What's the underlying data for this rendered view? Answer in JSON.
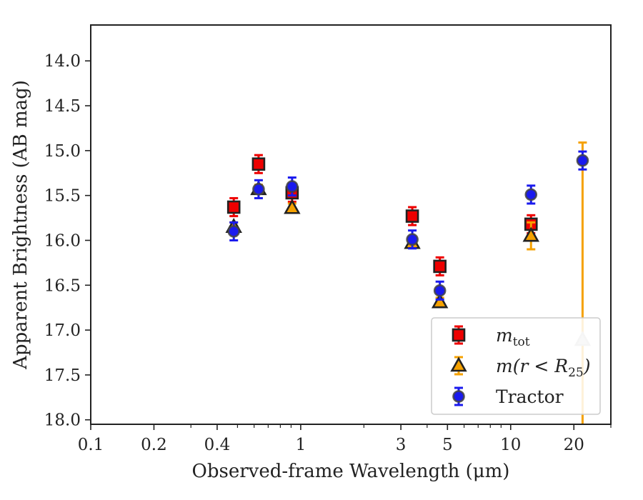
{
  "chart_data": {
    "type": "scatter",
    "xscale": "log",
    "yaxis_inverted": true,
    "xlim": [
      0.1,
      30
    ],
    "ylim": [
      18.05,
      13.6
    ],
    "xlabel": "Observed-frame Wavelength (μm)",
    "ylabel": "Apparent Brightness (AB mag)",
    "xticks": [
      {
        "value": 0.1,
        "label": "0.1"
      },
      {
        "value": 0.2,
        "label": "0.2"
      },
      {
        "value": 0.4,
        "label": "0.4"
      },
      {
        "value": 1,
        "label": "1"
      },
      {
        "value": 3,
        "label": "3"
      },
      {
        "value": 5,
        "label": "5"
      },
      {
        "value": 10,
        "label": "10"
      },
      {
        "value": 20,
        "label": "20"
      }
    ],
    "xminor": [
      0.3,
      0.5,
      0.6,
      0.7,
      0.8,
      0.9,
      2,
      4,
      6,
      7,
      8,
      9,
      30
    ],
    "yticks": [
      {
        "value": 14.0,
        "label": "14.0"
      },
      {
        "value": 14.5,
        "label": "14.5"
      },
      {
        "value": 15.0,
        "label": "15.0"
      },
      {
        "value": 15.5,
        "label": "15.5"
      },
      {
        "value": 16.0,
        "label": "16.0"
      },
      {
        "value": 16.5,
        "label": "16.5"
      },
      {
        "value": 17.0,
        "label": "17.0"
      },
      {
        "value": 17.5,
        "label": "17.5"
      },
      {
        "value": 18.0,
        "label": "18.0"
      }
    ],
    "legend_position": "lower-right",
    "series": [
      {
        "name": "m_tot",
        "legend_label": {
          "main": "m",
          "sub": "tot",
          "suffix": ""
        },
        "marker": "square",
        "color": "#ee0000",
        "points": [
          {
            "x": 0.48,
            "y": 15.63,
            "err": 0.1
          },
          {
            "x": 0.63,
            "y": 15.15,
            "err": 0.1
          },
          {
            "x": 0.91,
            "y": 15.47,
            "err": 0.1
          },
          {
            "x": 3.4,
            "y": 15.73,
            "err": 0.1
          },
          {
            "x": 4.6,
            "y": 16.29,
            "err": 0.1
          },
          {
            "x": 12.5,
            "y": 15.82,
            "err": 0.1
          }
        ]
      },
      {
        "name": "m(r<R_25)",
        "legend_label": {
          "main": "m(r < R",
          "sub": "25",
          "suffix": ")"
        },
        "marker": "triangle",
        "color": "#f5a100",
        "points": [
          {
            "x": 0.48,
            "y": 15.85,
            "err": 0.05
          },
          {
            "x": 0.63,
            "y": 15.43,
            "err": 0.05
          },
          {
            "x": 0.91,
            "y": 15.64,
            "err": 0.05
          },
          {
            "x": 3.4,
            "y": 16.03,
            "err": 0.05
          },
          {
            "x": 4.6,
            "y": 16.69,
            "err": 0.05
          },
          {
            "x": 12.5,
            "y": 15.95,
            "err": 0.15
          },
          {
            "x": 22,
            "y": 17.11,
            "err_low": 0.0,
            "err_high": 2.2
          }
        ]
      },
      {
        "name": "Tractor",
        "legend_label": {
          "main": "Tractor",
          "sub": "",
          "suffix": ""
        },
        "marker": "circle",
        "color": "#1a1aee",
        "points": [
          {
            "x": 0.48,
            "y": 15.9,
            "err": 0.1
          },
          {
            "x": 0.63,
            "y": 15.43,
            "err": 0.1
          },
          {
            "x": 0.91,
            "y": 15.4,
            "err": 0.1
          },
          {
            "x": 3.4,
            "y": 15.99,
            "err": 0.1
          },
          {
            "x": 4.6,
            "y": 16.56,
            "err": 0.1
          },
          {
            "x": 12.5,
            "y": 15.49,
            "err": 0.1
          },
          {
            "x": 22,
            "y": 15.11,
            "err": 0.1
          }
        ]
      }
    ]
  }
}
